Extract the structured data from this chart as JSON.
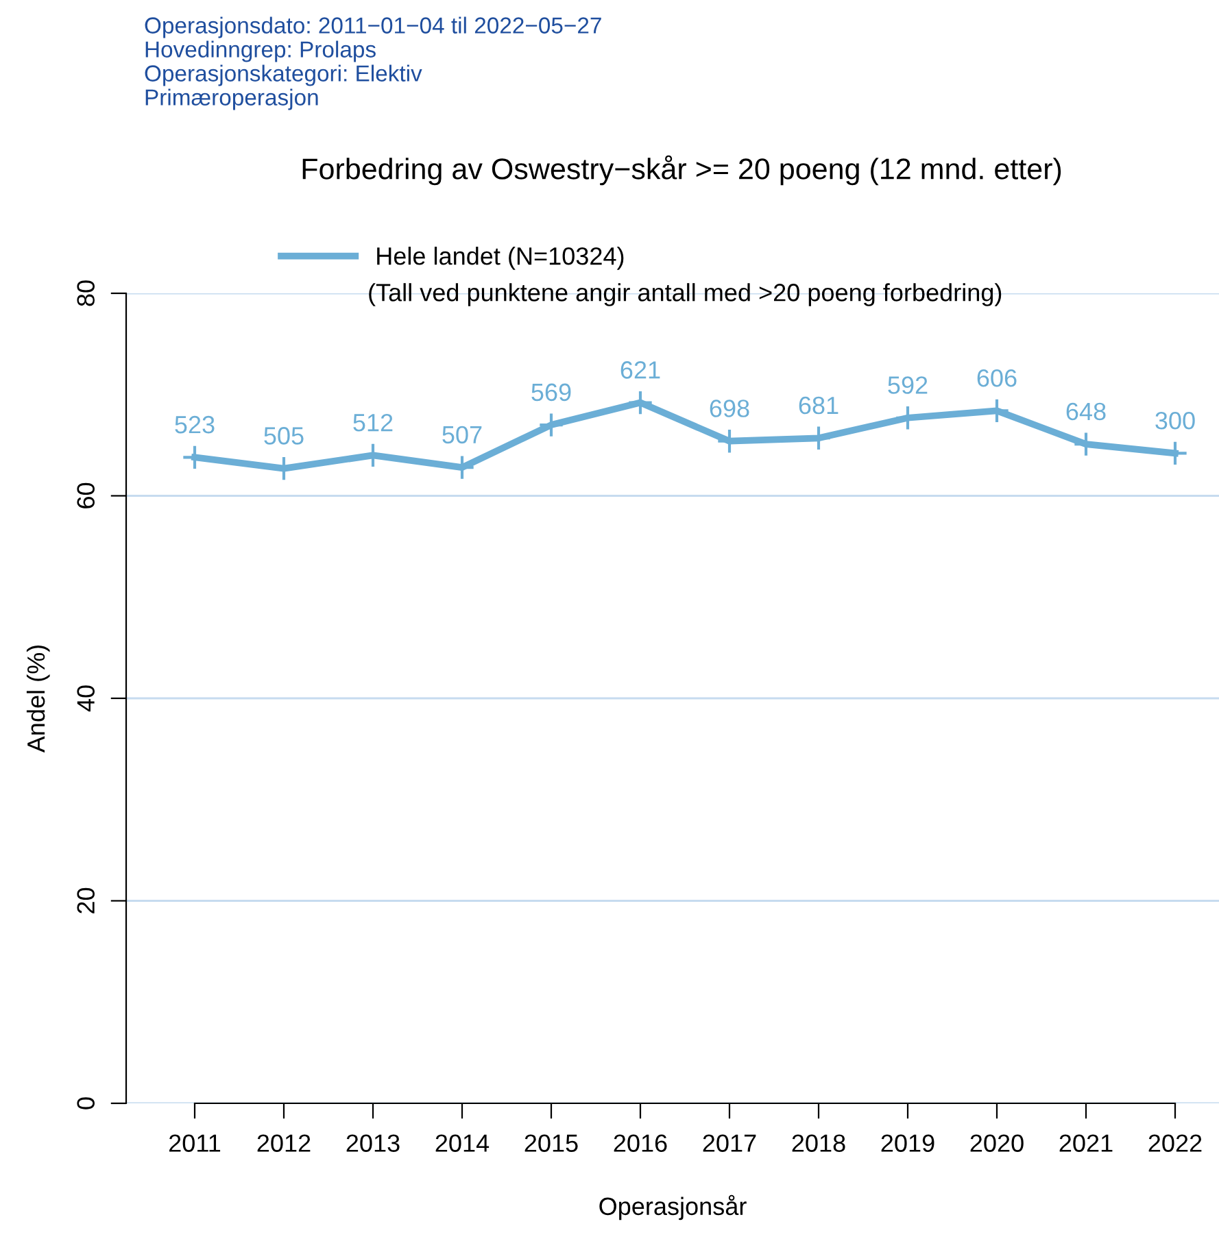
{
  "chart_data": {
    "type": "line",
    "title": "Forbedring av Oswestry−skår >= 20 poeng (12 mnd. etter)",
    "xlabel": "Operasjonsår",
    "ylabel": "Andel (%)",
    "annotations": [
      "Operasjonsdato: 2011−01−04 til 2022−05−27",
      "Hovedinngrep: Prolaps",
      "Operasjonskategori: Elektiv",
      "Primæroperasjon",
      "(Tall ved punktene angir antall med >20 poeng forbedring)",
      {
        "text": "523",
        "x": "2011",
        "y": 63.8
      },
      {
        "text": "505",
        "x": "2012",
        "y": 62.7
      },
      {
        "text": "512",
        "x": "2013",
        "y": 64.0
      },
      {
        "text": "507",
        "x": "2014",
        "y": 62.8
      },
      {
        "text": "569",
        "x": "2015",
        "y": 67.0
      },
      {
        "text": "621",
        "x": "2016",
        "y": 69.2
      },
      {
        "text": "698",
        "x": "2017",
        "y": 65.4
      },
      {
        "text": "681",
        "x": "2018",
        "y": 65.7
      },
      {
        "text": "592",
        "x": "2019",
        "y": 67.7
      },
      {
        "text": "606",
        "x": "2020",
        "y": 68.4
      },
      {
        "text": "648",
        "x": "2021",
        "y": 65.1
      },
      {
        "text": "300",
        "x": "2022",
        "y": 64.2
      }
    ],
    "categories": [
      "2011",
      "2012",
      "2013",
      "2014",
      "2015",
      "2016",
      "2017",
      "2018",
      "2019",
      "2020",
      "2021",
      "2022"
    ],
    "series": [
      {
        "name": "Hele landet (N=10324)",
        "color": "#6baed6",
        "values": [
          63.8,
          62.7,
          64.0,
          62.8,
          67.0,
          69.2,
          65.4,
          65.7,
          67.7,
          68.4,
          65.1,
          64.2
        ]
      }
    ],
    "ylim": [
      0,
      80
    ],
    "yticks": [
      0,
      20,
      40,
      60,
      80
    ],
    "grid": "y",
    "legend": "top",
    "marker": "cross",
    "line_style": "solid"
  }
}
